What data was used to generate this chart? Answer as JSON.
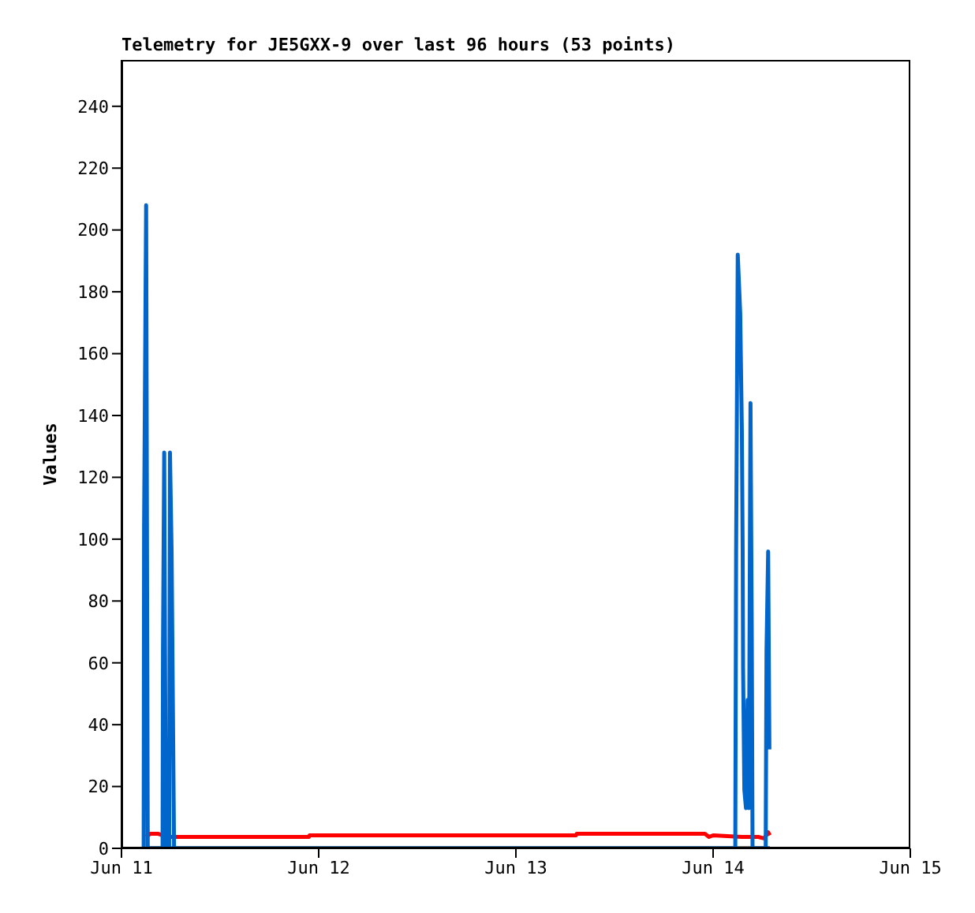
{
  "chart_data": {
    "type": "line",
    "title": "Telemetry for JE5GXX-9 over last 96 hours (53 points)",
    "ylabel": "Values",
    "xlim": [
      "--06-11",
      "--06-15"
    ],
    "xticks": [
      {
        "value": "--06-11",
        "label": "Jun 11"
      },
      {
        "value": "--06-12",
        "label": "Jun 12"
      },
      {
        "value": "--06-13",
        "label": "Jun 13"
      },
      {
        "value": "--06-14",
        "label": "Jun 14"
      },
      {
        "value": "--06-15",
        "label": "Jun 15"
      }
    ],
    "ylim": [
      0,
      255
    ],
    "yticks": [
      0,
      20,
      40,
      60,
      80,
      100,
      120,
      140,
      160,
      180,
      200,
      220,
      240
    ],
    "grid": false,
    "legend": false,
    "series": [
      {
        "color": "#000000",
        "x": [
          "--06-11T03:00",
          "--06-14T06:54"
        ],
        "values": [
          0,
          0
        ]
      },
      {
        "color": "#ff0000",
        "x": [
          "--06-11T03:00",
          "--06-11T03:30",
          "--06-11T04:30",
          "--06-11T05:30",
          "--06-11T22:48",
          "--06-11T22:54",
          "--06-13T07:18",
          "--06-13T07:24",
          "--06-13T23:00",
          "--06-13T23:30",
          "--06-14T00:00",
          "--06-14T03:30",
          "--06-14T05:30",
          "--06-14T06:12",
          "--06-14T06:42",
          "--06-14T06:54"
        ],
        "values": [
          3.7,
          4.7,
          4.7,
          3.7,
          3.7,
          4.2,
          4.2,
          4.7,
          4.7,
          3.7,
          4.2,
          3.7,
          3.7,
          3.2,
          5.2,
          4.2
        ]
      },
      {
        "color": "#0066cc",
        "x": [
          "--06-11T02:42",
          "--06-11T02:45",
          "--06-11T03:00",
          "--06-11T03:12",
          "--06-11T05:00",
          "--06-11T05:03",
          "--06-11T05:12",
          "--06-11T05:24",
          "--06-11T05:48",
          "--06-11T05:54",
          "--06-11T06:06",
          "--06-11T06:18",
          "--06-11T06:24",
          "--06-14T02:42",
          "--06-14T02:48",
          "--06-14T03:00",
          "--06-14T03:18",
          "--06-14T03:30",
          "--06-14T03:36",
          "--06-14T03:39",
          "--06-14T03:48",
          "--06-14T04:00",
          "--06-14T04:12",
          "--06-14T04:21",
          "--06-14T04:33",
          "--06-14T04:42",
          "--06-14T04:48",
          "--06-14T06:24",
          "--06-14T06:30",
          "--06-14T06:42",
          "--06-14T06:51"
        ],
        "values": [
          0,
          104,
          208,
          0,
          0,
          64,
          128,
          0,
          0,
          128,
          96,
          32,
          0,
          0,
          96,
          192,
          173,
          135,
          96,
          58,
          19,
          13,
          48,
          13,
          144,
          72,
          0,
          0,
          64,
          96,
          32
        ]
      }
    ]
  }
}
